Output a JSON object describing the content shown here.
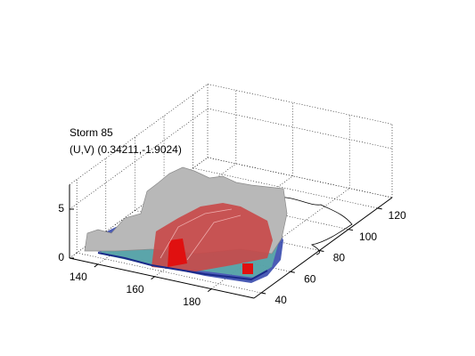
{
  "chart_data": {
    "type": "surface3d",
    "annotations": [
      "Storm 85",
      "(U,V) (0.34211,-1.9024)"
    ],
    "xlim": [
      130,
      195
    ],
    "ylim": [
      35,
      130
    ],
    "zlim": [
      0,
      7.5
    ],
    "xticks": [
      140,
      160,
      180
    ],
    "yticks": [
      40,
      60,
      80,
      100,
      120
    ],
    "zticks": [
      0,
      5
    ],
    "grid": true
  }
}
